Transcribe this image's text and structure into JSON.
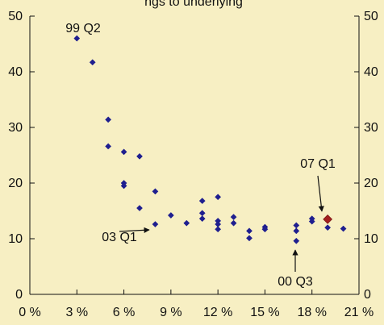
{
  "title_fragment": "ngs to underlying",
  "chart_data": {
    "type": "scatter",
    "title": "",
    "xlabel": "",
    "ylabel": "",
    "xlim": [
      0,
      21
    ],
    "ylim": [
      0,
      50
    ],
    "grid": false,
    "x_tick_labels": [
      "0 %",
      "3 %",
      "6 %",
      "9 %",
      "12 %",
      "15 %",
      "18 %",
      "21 %"
    ],
    "y_tick_labels_left": [
      "0",
      "10",
      "20",
      "30",
      "40",
      "50"
    ],
    "y_tick_labels_right": [
      "0",
      "10",
      "20",
      "30",
      "40",
      "50"
    ],
    "colors": {
      "background": "#f7efc3",
      "series": "#1f1f8f",
      "highlight": "#a31f1f",
      "axis": "#111111",
      "annotation": "#111111"
    },
    "series": [
      {
        "points": [
          [
            3.0,
            46.0
          ],
          [
            4.0,
            41.7
          ],
          [
            5.0,
            31.4
          ],
          [
            5.0,
            26.6
          ],
          [
            6.0,
            25.6
          ],
          [
            6.0,
            20.0
          ],
          [
            6.0,
            19.5
          ],
          [
            7.0,
            24.8
          ],
          [
            7.0,
            15.5
          ],
          [
            8.0,
            18.5
          ],
          [
            8.0,
            12.6
          ],
          [
            9.0,
            14.2
          ],
          [
            10.0,
            12.8
          ],
          [
            11.0,
            16.8
          ],
          [
            11.0,
            14.6
          ],
          [
            11.0,
            13.6
          ],
          [
            12.0,
            17.5
          ],
          [
            12.0,
            13.2
          ],
          [
            12.0,
            12.6
          ],
          [
            12.0,
            11.7
          ],
          [
            13.0,
            13.9
          ],
          [
            13.0,
            12.8
          ],
          [
            14.0,
            11.4
          ],
          [
            14.0,
            10.1
          ],
          [
            15.0,
            12.1
          ],
          [
            15.0,
            11.7
          ],
          [
            17.0,
            12.4
          ],
          [
            17.0,
            11.4
          ],
          [
            17.0,
            9.6
          ],
          [
            18.0,
            13.6
          ],
          [
            18.0,
            13.1
          ],
          [
            19.0,
            12.0
          ],
          [
            20.0,
            11.8
          ]
        ]
      },
      {
        "points": [
          [
            19.0,
            13.5
          ]
        ]
      }
    ],
    "annotations": [
      {
        "text": "99 Q2",
        "x": 3.0,
        "y": 46.0,
        "arrow": false
      },
      {
        "text": "03 Q1",
        "x": 8.0,
        "y": 12.6,
        "arrow": true
      },
      {
        "text": "07 Q1",
        "x": 19.0,
        "y": 13.5,
        "arrow": true
      },
      {
        "text": "00 Q3",
        "x": 17.0,
        "y": 9.6,
        "arrow": true
      }
    ]
  }
}
